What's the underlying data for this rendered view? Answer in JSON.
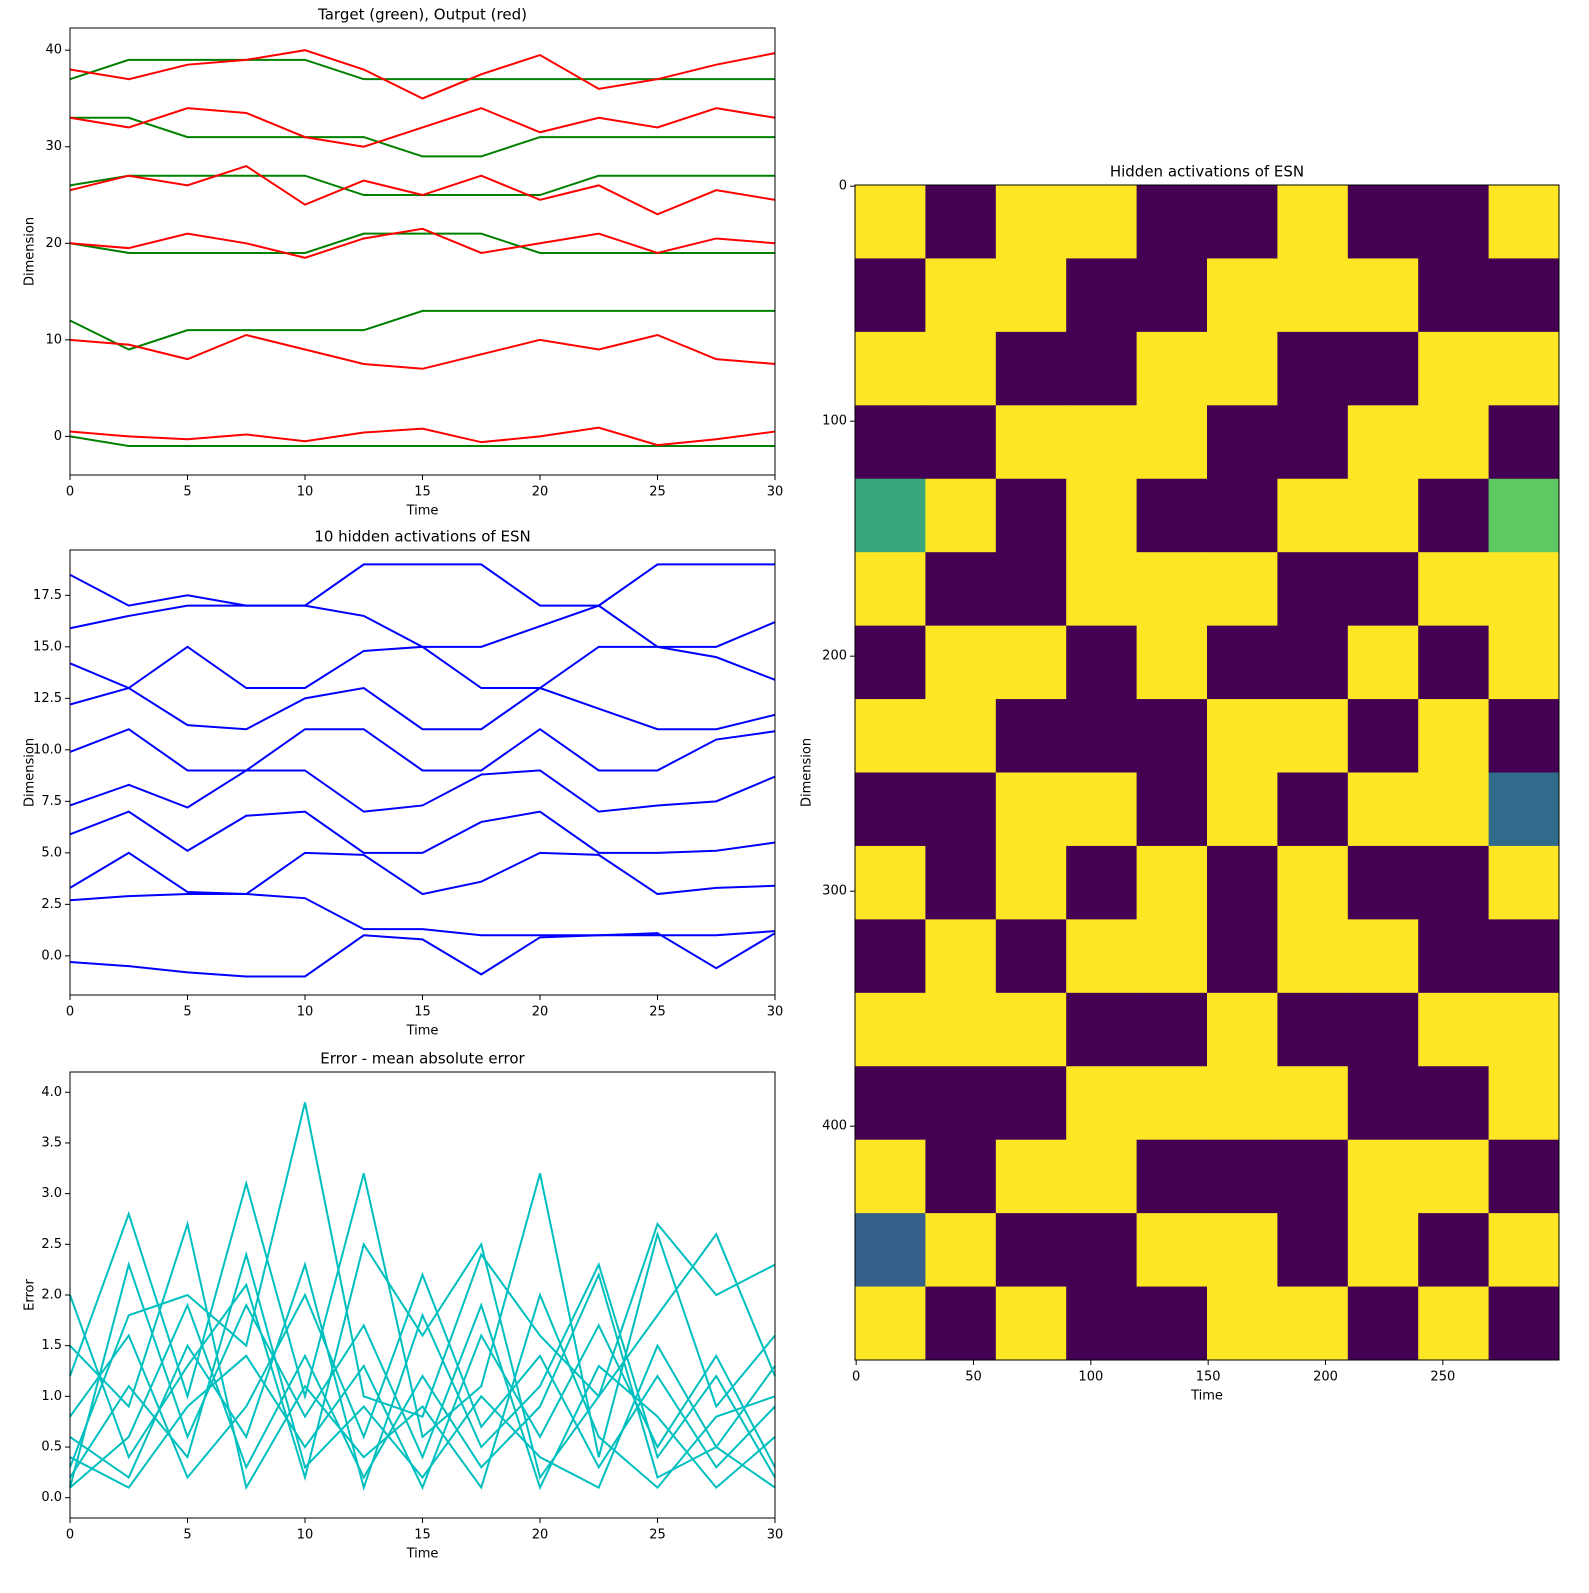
{
  "chart_data": [
    {
      "type": "line",
      "title": "Target (green), Output (red)",
      "xlabel": "Time",
      "ylabel": "Dimension",
      "x": [
        0,
        2.5,
        5,
        7.5,
        10,
        12.5,
        15,
        17.5,
        20,
        22.5,
        25,
        27.5,
        30
      ],
      "xlim": [
        0,
        30
      ],
      "xticks": [
        0,
        5,
        10,
        15,
        20,
        25,
        30
      ],
      "ylim": [
        -4,
        42.3
      ],
      "yticks": [
        0,
        10,
        20,
        30,
        40
      ],
      "series": [
        {
          "color": "#008000",
          "values": [
            0,
            -1,
            -1,
            -1,
            -1,
            -1,
            -1,
            -1,
            -1,
            -1,
            -1,
            -1,
            -1
          ]
        },
        {
          "color": "#008000",
          "values": [
            12,
            9,
            11,
            11,
            11,
            11,
            13,
            13,
            13,
            13,
            13,
            13,
            13
          ]
        },
        {
          "color": "#008000",
          "values": [
            20,
            19,
            19,
            19,
            19,
            21,
            21,
            21,
            19,
            19,
            19,
            19,
            19
          ]
        },
        {
          "color": "#008000",
          "values": [
            26,
            27,
            27,
            27,
            27,
            25,
            25,
            25,
            25,
            27,
            27,
            27,
            27
          ]
        },
        {
          "color": "#008000",
          "values": [
            33,
            33,
            31,
            31,
            31,
            31,
            29,
            29,
            31,
            31,
            31,
            31,
            31
          ]
        },
        {
          "color": "#008000",
          "values": [
            37,
            39,
            39,
            39,
            39,
            37,
            37,
            37,
            37,
            37,
            37,
            37,
            37
          ]
        },
        {
          "color": "#ff0000",
          "values": [
            0.5,
            0,
            -0.3,
            0.2,
            -0.5,
            0.4,
            0.8,
            -0.6,
            0,
            0.9,
            -0.9,
            -0.3,
            0.5
          ]
        },
        {
          "color": "#ff0000",
          "values": [
            10,
            9.5,
            8,
            10.5,
            9,
            7.5,
            7,
            8.5,
            10,
            9,
            10.5,
            8,
            7.5
          ]
        },
        {
          "color": "#ff0000",
          "values": [
            20,
            19.5,
            21,
            20,
            18.5,
            20.5,
            21.5,
            19,
            20,
            21,
            19,
            20.5,
            20
          ]
        },
        {
          "color": "#ff0000",
          "values": [
            25.5,
            27,
            26,
            28,
            24,
            26.5,
            25,
            27,
            24.5,
            26,
            23,
            25.5,
            24.5
          ]
        },
        {
          "color": "#ff0000",
          "values": [
            33,
            32,
            34,
            33.5,
            31,
            30,
            32,
            34,
            31.5,
            33,
            32,
            34,
            33
          ]
        },
        {
          "color": "#ff0000",
          "values": [
            38,
            37,
            38.5,
            39,
            40,
            38,
            35,
            37.5,
            39.5,
            36,
            37,
            38.5,
            39.7
          ]
        }
      ]
    },
    {
      "type": "line",
      "title": "10 hidden activations of ESN",
      "xlabel": "Time",
      "ylabel": "Dimension",
      "x": [
        0,
        2.5,
        5,
        7.5,
        10,
        12.5,
        15,
        17.5,
        20,
        22.5,
        25,
        27.5,
        30
      ],
      "xlim": [
        0,
        30
      ],
      "xticks": [
        0,
        5,
        10,
        15,
        20,
        25,
        30
      ],
      "ylim": [
        -1.9,
        19.7
      ],
      "yticks": [
        {
          "value": 0,
          "label": "0.0"
        },
        2.5,
        {
          "value": 5,
          "label": "5.0"
        },
        7.5,
        {
          "value": 10,
          "label": "10.0"
        },
        12.5,
        {
          "value": 15,
          "label": "15.0"
        },
        17.5
      ],
      "series": [
        {
          "color": "#0000ff",
          "values": [
            -0.3,
            -0.5,
            -0.8,
            -1,
            -1,
            1,
            0.8,
            -0.9,
            0.9,
            1,
            1.1,
            -0.6,
            1.1
          ]
        },
        {
          "color": "#0000ff",
          "values": [
            2.7,
            2.9,
            3,
            3,
            2.8,
            1.3,
            1.3,
            1,
            1,
            1,
            1,
            1,
            1.2
          ]
        },
        {
          "color": "#0000ff",
          "values": [
            3.3,
            5,
            3.1,
            3,
            5,
            4.9,
            3,
            3.6,
            5,
            4.9,
            3,
            3.3,
            3.4
          ]
        },
        {
          "color": "#0000ff",
          "values": [
            5.9,
            7,
            5.1,
            6.8,
            7,
            5,
            5,
            6.5,
            7,
            5,
            5,
            5.1,
            5.5
          ]
        },
        {
          "color": "#0000ff",
          "values": [
            7.3,
            8.3,
            7.2,
            9,
            9,
            7,
            7.3,
            8.8,
            9,
            7,
            7.3,
            7.5,
            8.7
          ]
        },
        {
          "color": "#0000ff",
          "values": [
            9.9,
            11,
            9,
            9,
            11,
            11,
            9,
            9,
            11,
            9,
            9,
            10.5,
            10.9
          ]
        },
        {
          "color": "#0000ff",
          "values": [
            12.2,
            13,
            11.2,
            11,
            12.5,
            13,
            11,
            11,
            13,
            12,
            11,
            11,
            11.7
          ]
        },
        {
          "color": "#0000ff",
          "values": [
            14.2,
            13,
            15,
            13,
            13,
            14.8,
            15,
            13,
            13,
            15,
            15,
            14.5,
            13.4
          ]
        },
        {
          "color": "#0000ff",
          "values": [
            15.9,
            16.5,
            17,
            17,
            17,
            16.5,
            15,
            15,
            16,
            17,
            15,
            15,
            16.2
          ]
        },
        {
          "color": "#0000ff",
          "values": [
            18.5,
            17,
            17.5,
            17,
            17,
            19,
            19,
            19,
            17,
            17,
            19,
            19,
            19
          ]
        }
      ]
    },
    {
      "type": "line",
      "title": "Error - mean absolute error",
      "xlabel": "Time",
      "ylabel": "Error",
      "x": [
        0,
        2.5,
        5,
        7.5,
        10,
        12.5,
        15,
        17.5,
        20,
        22.5,
        25,
        27.5,
        30
      ],
      "xlim": [
        0,
        30
      ],
      "xticks": [
        0,
        5,
        10,
        15,
        20,
        25,
        30
      ],
      "ylim": [
        -0.2,
        4.2
      ],
      "yticks": [
        {
          "value": 0,
          "label": "0.0"
        },
        0.5,
        {
          "value": 1,
          "label": "1.0"
        },
        1.5,
        {
          "value": 2,
          "label": "2.0"
        },
        2.5,
        {
          "value": 3,
          "label": "3.0"
        },
        3.5,
        {
          "value": 4,
          "label": "4.0"
        }
      ],
      "series": [
        {
          "color": "#00bfbf",
          "values": [
            0.3,
            1.8,
            2.0,
            1.5,
            3.9,
            1.0,
            0.8,
            2.4,
            1.6,
            1.0,
            2.7,
            2.0,
            2.3
          ]
        },
        {
          "color": "#00bfbf",
          "values": [
            1.2,
            2.8,
            1.0,
            3.1,
            1.0,
            3.2,
            0.6,
            1.1,
            3.2,
            0.4,
            2.6,
            0.9,
            1.6
          ]
        },
        {
          "color": "#00bfbf",
          "values": [
            0.1,
            0.6,
            1.9,
            0.3,
            1.4,
            0.2,
            1.2,
            0.3,
            0.9,
            2.2,
            0.2,
            0.5,
            0.1
          ]
        },
        {
          "color": "#00bfbf",
          "values": [
            2.0,
            0.4,
            1.3,
            2.1,
            0.2,
            2.5,
            1.6,
            2.5,
            0.2,
            1.0,
            1.8,
            2.6,
            1.2
          ]
        },
        {
          "color": "#00bfbf",
          "values": [
            0.8,
            1.6,
            0.2,
            0.9,
            2.0,
            0.6,
            2.2,
            0.7,
            1.4,
            0.3,
            1.2,
            0.3,
            0.9
          ]
        },
        {
          "color": "#00bfbf",
          "values": [
            0.4,
            0.1,
            0.9,
            1.4,
            0.5,
            1.3,
            0.1,
            1.6,
            0.6,
            1.7,
            0.5,
            1.4,
            0.3
          ]
        },
        {
          "color": "#00bfbf",
          "values": [
            1.5,
            0.9,
            2.7,
            0.1,
            1.1,
            0.4,
            0.9,
            0.1,
            2.0,
            0.6,
            0.1,
            0.8,
            1.0
          ]
        },
        {
          "color": "#00bfbf",
          "values": [
            0.1,
            2.3,
            0.6,
            1.9,
            0.8,
            1.7,
            0.4,
            1.9,
            0.1,
            1.3,
            0.8,
            0.1,
            0.6
          ]
        },
        {
          "color": "#00bfbf",
          "values": [
            0.6,
            0.2,
            1.5,
            0.6,
            2.3,
            0.1,
            1.8,
            0.5,
            1.1,
            2.3,
            0.4,
            1.2,
            0.2
          ]
        },
        {
          "color": "#00bfbf",
          "values": [
            0.2,
            1.1,
            0.4,
            2.4,
            0.3,
            0.9,
            0.2,
            1.0,
            0.4,
            0.1,
            1.5,
            0.5,
            1.3
          ]
        }
      ]
    },
    {
      "type": "heatmap",
      "title": "Hidden activations of ESN",
      "xlabel": "Time",
      "ylabel": "Dimension",
      "xlim": [
        -0.5,
        299.5
      ],
      "xticks": [
        0,
        50,
        100,
        150,
        200,
        250
      ],
      "ylim": [
        499.5,
        -0.5
      ],
      "yticks": [
        0,
        100,
        200,
        300,
        400
      ],
      "zlim": [
        -1,
        1
      ],
      "colormap": [
        "#440154",
        "#3b528b",
        "#21918c",
        "#5ec962",
        "#fde725"
      ],
      "z": [
        [
          1,
          -1,
          1,
          1,
          -1,
          -1,
          1,
          -1,
          -1,
          1
        ],
        [
          -1,
          1,
          1,
          -1,
          -1,
          1,
          1,
          1,
          -1,
          -1
        ],
        [
          1,
          1,
          -1,
          -1,
          1,
          1,
          -1,
          -1,
          1,
          1
        ],
        [
          -1,
          -1,
          1,
          1,
          1,
          -1,
          -1,
          1,
          1,
          -1
        ],
        [
          0.2,
          1,
          -1,
          1,
          -1,
          -1,
          1,
          1,
          -1,
          0.5
        ],
        [
          1,
          -1,
          -1,
          1,
          1,
          1,
          -1,
          -1,
          1,
          1
        ],
        [
          -1,
          1,
          1,
          -1,
          1,
          -1,
          -1,
          1,
          -1,
          1
        ],
        [
          1,
          1,
          -1,
          -1,
          -1,
          1,
          1,
          -1,
          1,
          -1
        ],
        [
          -1,
          -1,
          1,
          1,
          -1,
          1,
          -1,
          1,
          1,
          -0.3
        ],
        [
          1,
          -1,
          1,
          -1,
          1,
          -1,
          1,
          -1,
          -1,
          1
        ],
        [
          -1,
          1,
          -1,
          1,
          1,
          -1,
          1,
          1,
          -1,
          -1
        ],
        [
          1,
          1,
          1,
          -1,
          -1,
          1,
          -1,
          -1,
          1,
          1
        ],
        [
          -1,
          -1,
          -1,
          1,
          1,
          1,
          1,
          -1,
          -1,
          1
        ],
        [
          1,
          -1,
          1,
          1,
          -1,
          -1,
          -1,
          1,
          1,
          -1
        ],
        [
          -0.4,
          1,
          -1,
          -1,
          1,
          1,
          -1,
          1,
          -1,
          1
        ],
        [
          1,
          -1,
          1,
          -1,
          -1,
          1,
          1,
          -1,
          1,
          -1
        ]
      ]
    }
  ]
}
